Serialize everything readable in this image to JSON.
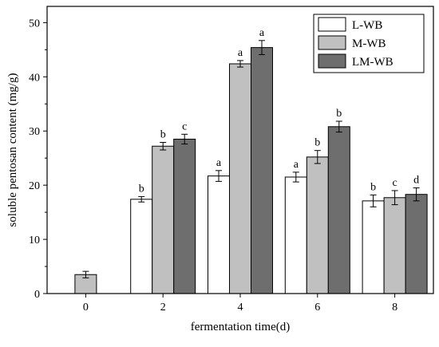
{
  "chart_data": {
    "type": "bar",
    "title": "",
    "xlabel": "fermentation time(d)",
    "ylabel": "soluble pentosan content (mg/g)",
    "ylim": [
      0,
      53
    ],
    "yticks": [
      0,
      10,
      20,
      30,
      40,
      50
    ],
    "categories": [
      "0",
      "2",
      "4",
      "6",
      "8"
    ],
    "legend_position": "top-right",
    "grid": false,
    "series": [
      {
        "name": "L-WB",
        "color": "#ffffff",
        "values": [
          null,
          17.4,
          21.7,
          21.5,
          17.1
        ],
        "errors": [
          null,
          0.5,
          1.0,
          0.9,
          1.1
        ],
        "labels": [
          "",
          "b",
          "a",
          "a",
          "b"
        ]
      },
      {
        "name": "M-WB",
        "color": "#c0c0c0",
        "values": [
          3.5,
          27.2,
          42.4,
          25.2,
          17.7
        ],
        "errors": [
          0.6,
          0.7,
          0.6,
          1.2,
          1.3
        ],
        "labels": [
          "",
          "b",
          "a",
          "b",
          "c"
        ]
      },
      {
        "name": "LM-WB",
        "color": "#6e6e6e",
        "values": [
          null,
          28.5,
          45.4,
          30.8,
          18.3
        ],
        "errors": [
          null,
          0.9,
          1.3,
          1.0,
          1.2
        ],
        "labels": [
          "",
          "c",
          "a",
          "b",
          "d"
        ]
      }
    ]
  }
}
